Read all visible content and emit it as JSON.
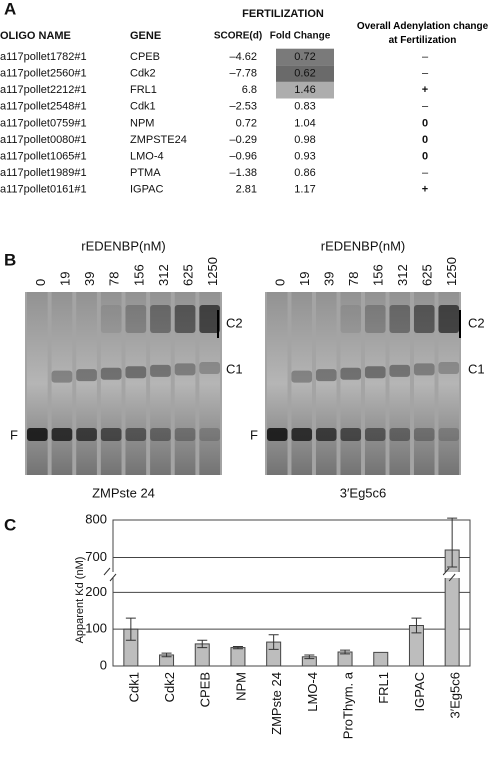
{
  "panel_a": {
    "label": "A",
    "group_header": "FERTILIZATION",
    "columns": [
      "OLIGO NAME",
      "GENE",
      "SCORE(d)",
      "Fold Change",
      "Overall Adenylation change at Fertilization"
    ],
    "rows": [
      {
        "oligo": "a117pollet1782#1",
        "gene": "CPEB",
        "score": "–4.62",
        "fold_change": "0.72",
        "adenylation": "–",
        "shade": "#7a7a7a"
      },
      {
        "oligo": "a117pollet2560#1",
        "gene": "Cdk2",
        "score": "–7.78",
        "fold_change": "0.62",
        "adenylation": "–",
        "shade": "#6a6a6a"
      },
      {
        "oligo": "a117pollet2212#1",
        "gene": "FRL1",
        "score": "6.8",
        "fold_change": "1.46",
        "adenylation": "+",
        "shade": "#adadad"
      },
      {
        "oligo": "a117pollet2548#1",
        "gene": "Cdk1",
        "score": "–2.53",
        "fold_change": "0.83",
        "adenylation": "–"
      },
      {
        "oligo": "a117pollet0759#1",
        "gene": "NPM",
        "score": "0.72",
        "fold_change": "1.04",
        "adenylation": "0"
      },
      {
        "oligo": "a117pollet0080#1",
        "gene": "ZMPSTE24",
        "score": "–0.29",
        "fold_change": "0.98",
        "adenylation": "0"
      },
      {
        "oligo": "a117pollet1065#1",
        "gene": "LMO-4",
        "score": "–0.96",
        "fold_change": "0.93",
        "adenylation": "0"
      },
      {
        "oligo": "a117pollet1989#1",
        "gene": "PTMA",
        "score": "–1.38",
        "fold_change": "0.86",
        "adenylation": "–"
      },
      {
        "oligo": "a117pollet0161#1",
        "gene": "IGPAC",
        "score": "2.81",
        "fold_change": "1.17",
        "adenylation": "+"
      }
    ]
  },
  "panel_b": {
    "label": "B",
    "gels": [
      {
        "title": "rEDENBP(nM)",
        "lanes": [
          0,
          19,
          39,
          78,
          156,
          312,
          625,
          1250
        ],
        "bands": [
          "C2",
          "C1",
          "F"
        ],
        "caption": "ZMPste 24"
      },
      {
        "title": "rEDENBP(nM)",
        "lanes": [
          0,
          19,
          39,
          78,
          156,
          312,
          625,
          1250
        ],
        "bands": [
          "C2",
          "C1",
          "F"
        ],
        "caption": "3′Eg5c6"
      }
    ]
  },
  "panel_c": {
    "label": "C"
  },
  "chart_data": {
    "type": "bar",
    "y_label": "Apparent Kd (nM)",
    "categories": [
      "Cdk1",
      "Cdk2",
      "CPEB",
      "NPM",
      "ZMPste 24",
      "LMO-4",
      "ProThym. a",
      "FRL1",
      "IGPAC",
      "3′Eg5c6"
    ],
    "values": [
      100,
      30,
      60,
      50,
      65,
      25,
      38,
      37,
      110,
      720
    ],
    "errors": [
      30,
      5,
      10,
      3,
      20,
      5,
      5,
      null,
      20,
      85
    ],
    "color": "#bdbdbd",
    "ylim": [
      0,
      800
    ],
    "ybreak": [
      220,
      680
    ],
    "yticks": [
      0,
      100,
      200,
      700,
      800
    ],
    "grid": true
  }
}
